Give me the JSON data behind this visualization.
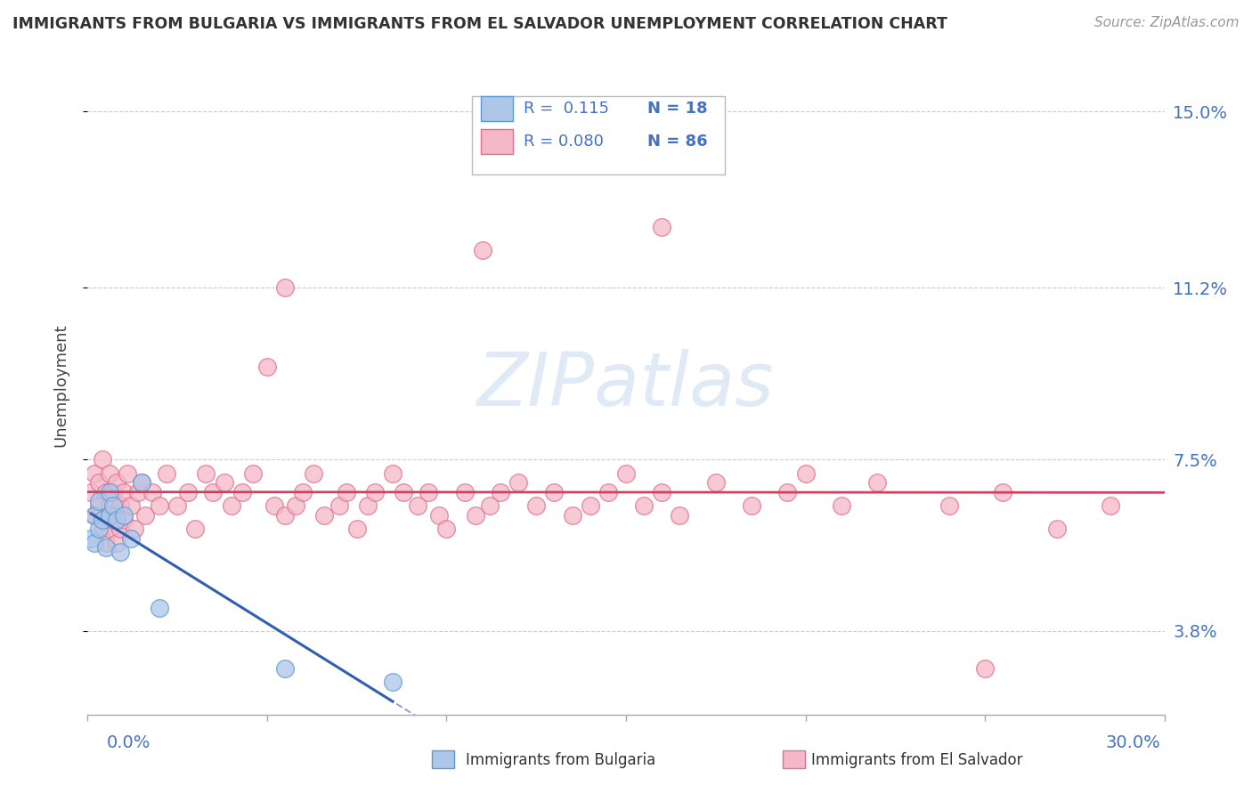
{
  "title": "IMMIGRANTS FROM BULGARIA VS IMMIGRANTS FROM EL SALVADOR UNEMPLOYMENT CORRELATION CHART",
  "source": "Source: ZipAtlas.com",
  "ylabel": "Unemployment",
  "xlim": [
    0.0,
    0.3
  ],
  "ylim": [
    0.02,
    0.162
  ],
  "yticks": [
    0.038,
    0.075,
    0.112,
    0.15
  ],
  "ytick_labels": [
    "3.8%",
    "7.5%",
    "11.2%",
    "15.0%"
  ],
  "bulgaria_color": "#aec6e8",
  "el_salvador_color": "#f4b8c8",
  "bulgaria_edge_color": "#5b9bd5",
  "el_salvador_edge_color": "#e07090",
  "trend_bulgaria_color": "#3060b0",
  "trend_el_salvador_color": "#d04060",
  "trend_dashed_color": "#8888bb",
  "watermark": "ZIPatlas",
  "legend_R_bulgaria": "R =  0.115",
  "legend_N_bulgaria": "N = 18",
  "legend_R_el_salvador": "R = 0.080",
  "legend_N_el_salvador": "N = 86",
  "legend_color": "#4472c4",
  "bg_x": [
    0.001,
    0.002,
    0.002,
    0.003,
    0.003,
    0.004,
    0.005,
    0.006,
    0.006,
    0.007,
    0.008,
    0.009,
    0.01,
    0.012,
    0.015,
    0.02,
    0.055,
    0.085
  ],
  "bg_y": [
    0.058,
    0.063,
    0.057,
    0.06,
    0.066,
    0.062,
    0.056,
    0.063,
    0.068,
    0.065,
    0.062,
    0.055,
    0.063,
    0.058,
    0.07,
    0.043,
    0.03,
    0.027
  ],
  "es_x": [
    0.001,
    0.002,
    0.002,
    0.003,
    0.003,
    0.004,
    0.004,
    0.005,
    0.005,
    0.005,
    0.006,
    0.006,
    0.006,
    0.007,
    0.007,
    0.008,
    0.008,
    0.008,
    0.009,
    0.009,
    0.01,
    0.01,
    0.011,
    0.012,
    0.013,
    0.014,
    0.015,
    0.016,
    0.018,
    0.02,
    0.022,
    0.025,
    0.028,
    0.03,
    0.033,
    0.035,
    0.038,
    0.04,
    0.043,
    0.046,
    0.05,
    0.052,
    0.055,
    0.058,
    0.06,
    0.063,
    0.066,
    0.07,
    0.072,
    0.075,
    0.078,
    0.08,
    0.085,
    0.088,
    0.092,
    0.095,
    0.098,
    0.1,
    0.105,
    0.108,
    0.112,
    0.115,
    0.12,
    0.125,
    0.13,
    0.135,
    0.14,
    0.145,
    0.15,
    0.155,
    0.16,
    0.165,
    0.175,
    0.185,
    0.195,
    0.2,
    0.21,
    0.22,
    0.24,
    0.255,
    0.27,
    0.285,
    0.11,
    0.16,
    0.25,
    0.055
  ],
  "es_y": [
    0.068,
    0.072,
    0.063,
    0.07,
    0.065,
    0.075,
    0.06,
    0.068,
    0.063,
    0.057,
    0.072,
    0.065,
    0.06,
    0.068,
    0.062,
    0.07,
    0.063,
    0.057,
    0.065,
    0.06,
    0.068,
    0.062,
    0.072,
    0.065,
    0.06,
    0.068,
    0.07,
    0.063,
    0.068,
    0.065,
    0.072,
    0.065,
    0.068,
    0.06,
    0.072,
    0.068,
    0.07,
    0.065,
    0.068,
    0.072,
    0.095,
    0.065,
    0.063,
    0.065,
    0.068,
    0.072,
    0.063,
    0.065,
    0.068,
    0.06,
    0.065,
    0.068,
    0.072,
    0.068,
    0.065,
    0.068,
    0.063,
    0.06,
    0.068,
    0.063,
    0.065,
    0.068,
    0.07,
    0.065,
    0.068,
    0.063,
    0.065,
    0.068,
    0.072,
    0.065,
    0.068,
    0.063,
    0.07,
    0.065,
    0.068,
    0.072,
    0.065,
    0.07,
    0.065,
    0.068,
    0.06,
    0.065,
    0.12,
    0.125,
    0.03,
    0.112
  ]
}
